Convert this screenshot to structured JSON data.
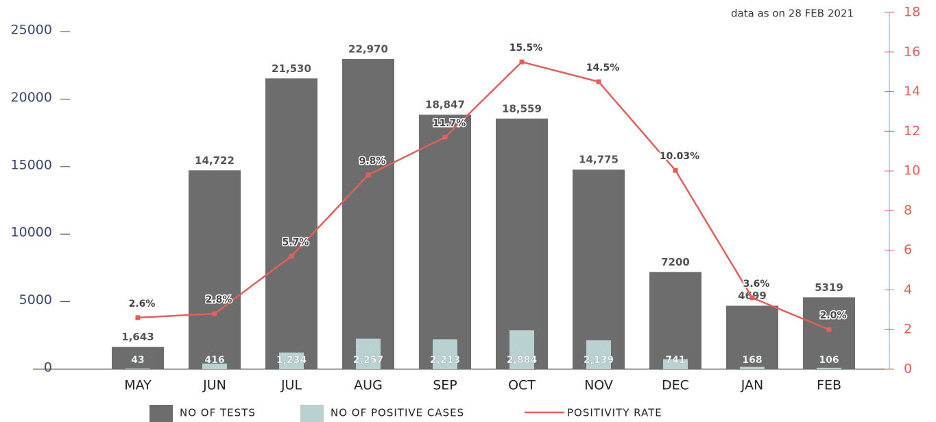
{
  "chart_data": {
    "type": "bar",
    "note": "data as on 28 FEB 2021",
    "categories": [
      "MAY",
      "JUN",
      "JUL",
      "AUG",
      "SEP",
      "OCT",
      "NOV",
      "DEC",
      "JAN",
      "FEB"
    ],
    "series": [
      {
        "name": "NO OF TESTS",
        "color": "#6d6d6d",
        "values": [
          1643,
          14722,
          21530,
          22970,
          18847,
          18559,
          14775,
          7200,
          4699,
          5319
        ],
        "value_labels": [
          "1,643",
          "14,722",
          "21,530",
          "22,970",
          "18,847",
          "18,559",
          "14,775",
          "7200",
          "4699",
          "5319"
        ]
      },
      {
        "name": "NO OF POSITIVE CASES",
        "color": "#b9d1d1",
        "values": [
          43,
          416,
          1234,
          2257,
          2213,
          2884,
          2139,
          741,
          168,
          106
        ],
        "value_labels": [
          "43",
          "416",
          "1,234",
          "2,257",
          "2,213",
          "2,884",
          "2,139",
          "741",
          "168",
          "106"
        ]
      },
      {
        "name": "POSITIVITY RATE",
        "type": "line",
        "axis": "y2",
        "color": "#e0605a",
        "values": [
          2.6,
          2.8,
          5.7,
          9.8,
          11.7,
          15.5,
          14.5,
          10.03,
          3.6,
          2.0
        ],
        "value_labels": [
          "2.6%",
          "2.8%",
          "5.7%",
          "9.8%",
          "11.7%",
          "15.5%",
          "14.5%",
          "10.03%",
          "3.6%",
          "2.0%"
        ]
      }
    ],
    "ylim": [
      0,
      25000
    ],
    "yticks": [
      0,
      5000,
      10000,
      15000,
      20000,
      25000
    ],
    "y2lim": [
      0,
      18
    ],
    "y2ticks": [
      0,
      2,
      4,
      6,
      8,
      10,
      12,
      14,
      16,
      18
    ]
  }
}
